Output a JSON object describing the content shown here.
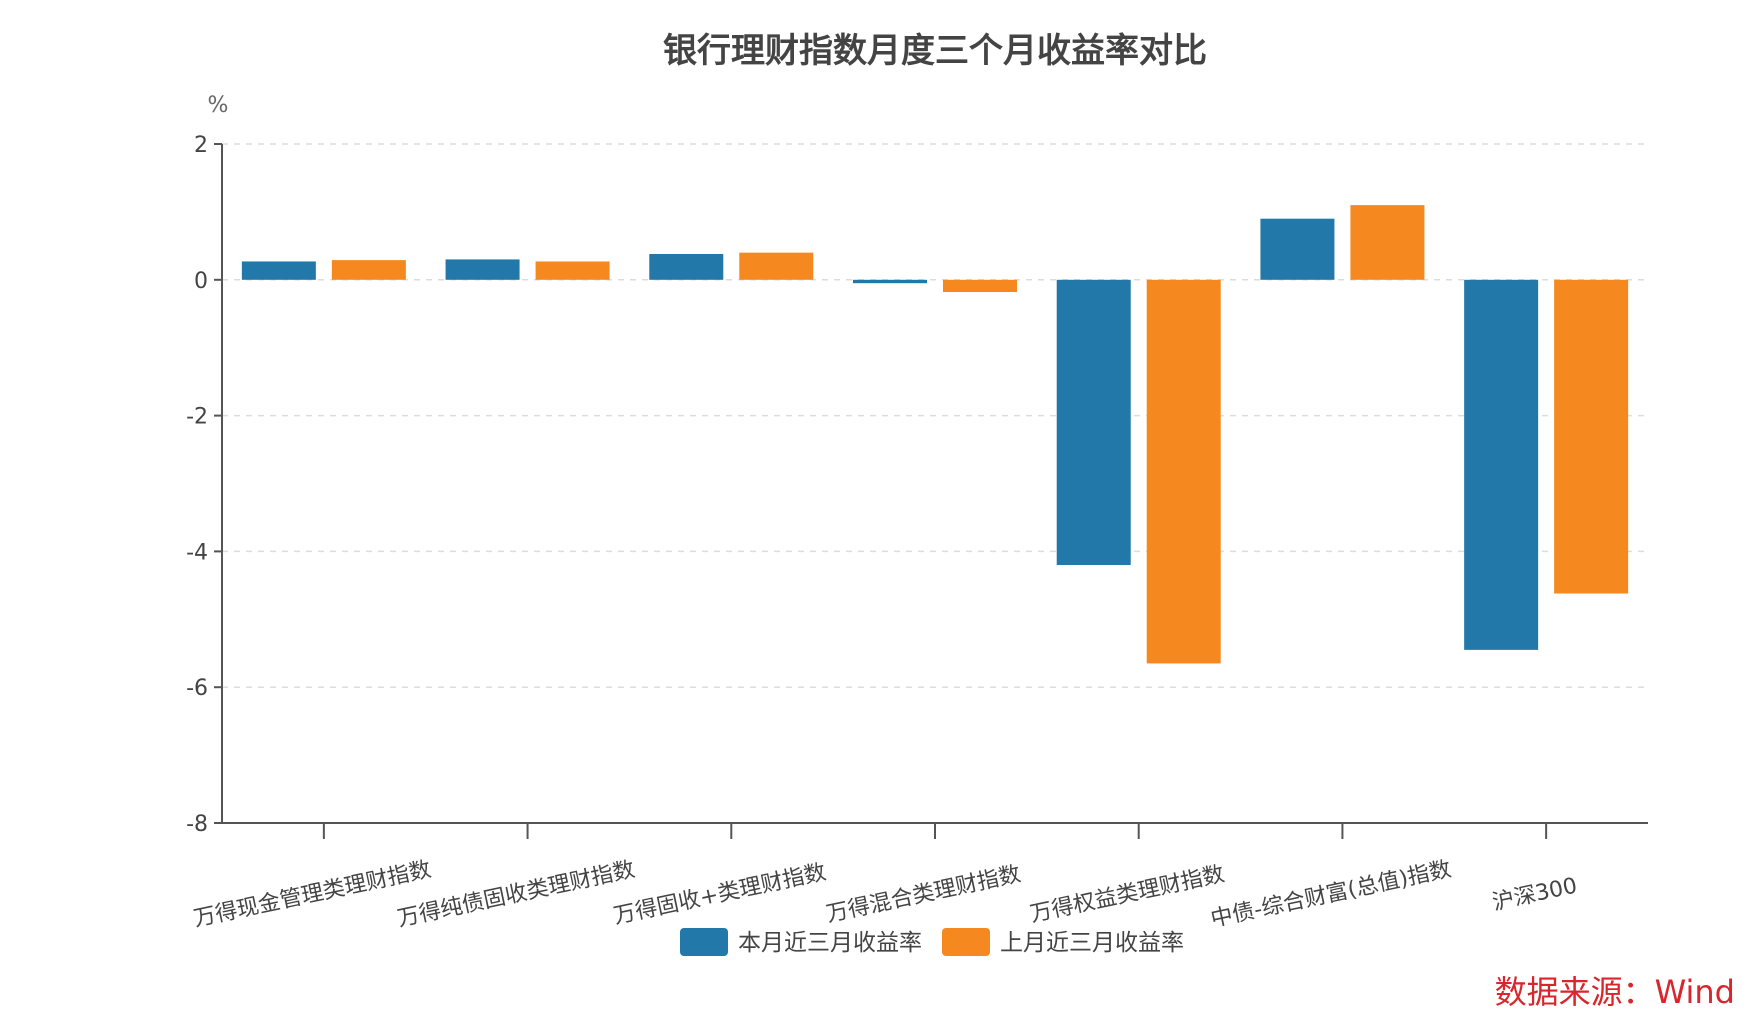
{
  "chart_data": {
    "type": "bar",
    "title": "银行理财指数月度三个月收益率对比",
    "ylabel": "%",
    "ylim": [
      -8,
      2
    ],
    "yticks": [
      2,
      0,
      -2,
      -4,
      -6,
      -8
    ],
    "grid": true,
    "legend_position": "bottom",
    "categories": [
      "万得现金管理类理财指数",
      "万得纯债固收类理财指数",
      "万得固收+类理财指数",
      "万得混合类理财指数",
      "万得权益类理财指数",
      "中债-综合财富(总值)指数",
      "沪深300"
    ],
    "series": [
      {
        "name": "本月近三月收益率",
        "color": "#2278a8",
        "values": [
          0.27,
          0.3,
          0.38,
          -0.05,
          -4.2,
          0.9,
          -5.45
        ]
      },
      {
        "name": "上月近三月收益率",
        "color": "#f5891f",
        "values": [
          0.29,
          0.27,
          0.4,
          -0.18,
          -5.65,
          1.1,
          -4.62
        ]
      }
    ]
  },
  "source": "数据来源：Wind"
}
